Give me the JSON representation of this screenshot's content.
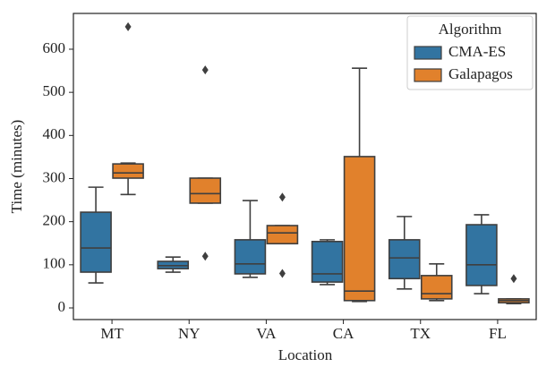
{
  "chart_data": {
    "type": "box",
    "x_label": "Location",
    "y_label": "Time (minutes)",
    "categories": [
      "MT",
      "NY",
      "VA",
      "CA",
      "TX",
      "FL"
    ],
    "ylim": [
      -27,
      683
    ],
    "yticks": [
      0,
      100,
      200,
      300,
      400,
      500,
      600
    ],
    "legend_title": "Algorithm",
    "legend_position": "upper right",
    "series": [
      {
        "name": "CMA-ES",
        "color": "#3274a1",
        "values": [
          {
            "min": 58,
            "q1": 83,
            "median": 139,
            "q3": 222,
            "max": 280,
            "outliers": []
          },
          {
            "min": 83,
            "q1": 91,
            "median": 98,
            "q3": 108,
            "max": 118,
            "outliers": []
          },
          {
            "min": 71,
            "q1": 79,
            "median": 102,
            "q3": 158,
            "max": 249,
            "outliers": []
          },
          {
            "min": 54,
            "q1": 60,
            "median": 79,
            "q3": 154,
            "max": 158,
            "outliers": []
          },
          {
            "min": 44,
            "q1": 68,
            "median": 116,
            "q3": 158,
            "max": 212,
            "outliers": []
          },
          {
            "min": 33,
            "q1": 52,
            "median": 100,
            "q3": 193,
            "max": 216,
            "outliers": []
          }
        ]
      },
      {
        "name": "Galapagos",
        "color": "#e1812c",
        "values": [
          {
            "min": 263,
            "q1": 301,
            "median": 313,
            "q3": 334,
            "max": 336,
            "outliers": [
              652
            ]
          },
          {
            "min": 243,
            "q1": 243,
            "median": 265,
            "q3": 301,
            "max": 301,
            "outliers": [
              552,
              120
            ]
          },
          {
            "min": 149,
            "q1": 149,
            "median": 174,
            "q3": 191,
            "max": 191,
            "outliers": [
              257,
              80
            ]
          },
          {
            "min": 15,
            "q1": 17,
            "median": 39,
            "q3": 351,
            "max": 556,
            "outliers": []
          },
          {
            "min": 17,
            "q1": 21,
            "median": 33,
            "q3": 75,
            "max": 102,
            "outliers": []
          },
          {
            "min": 10,
            "q1": 12,
            "median": 17,
            "q3": 21,
            "max": 21,
            "outliers": [
              68
            ]
          }
        ]
      }
    ]
  }
}
